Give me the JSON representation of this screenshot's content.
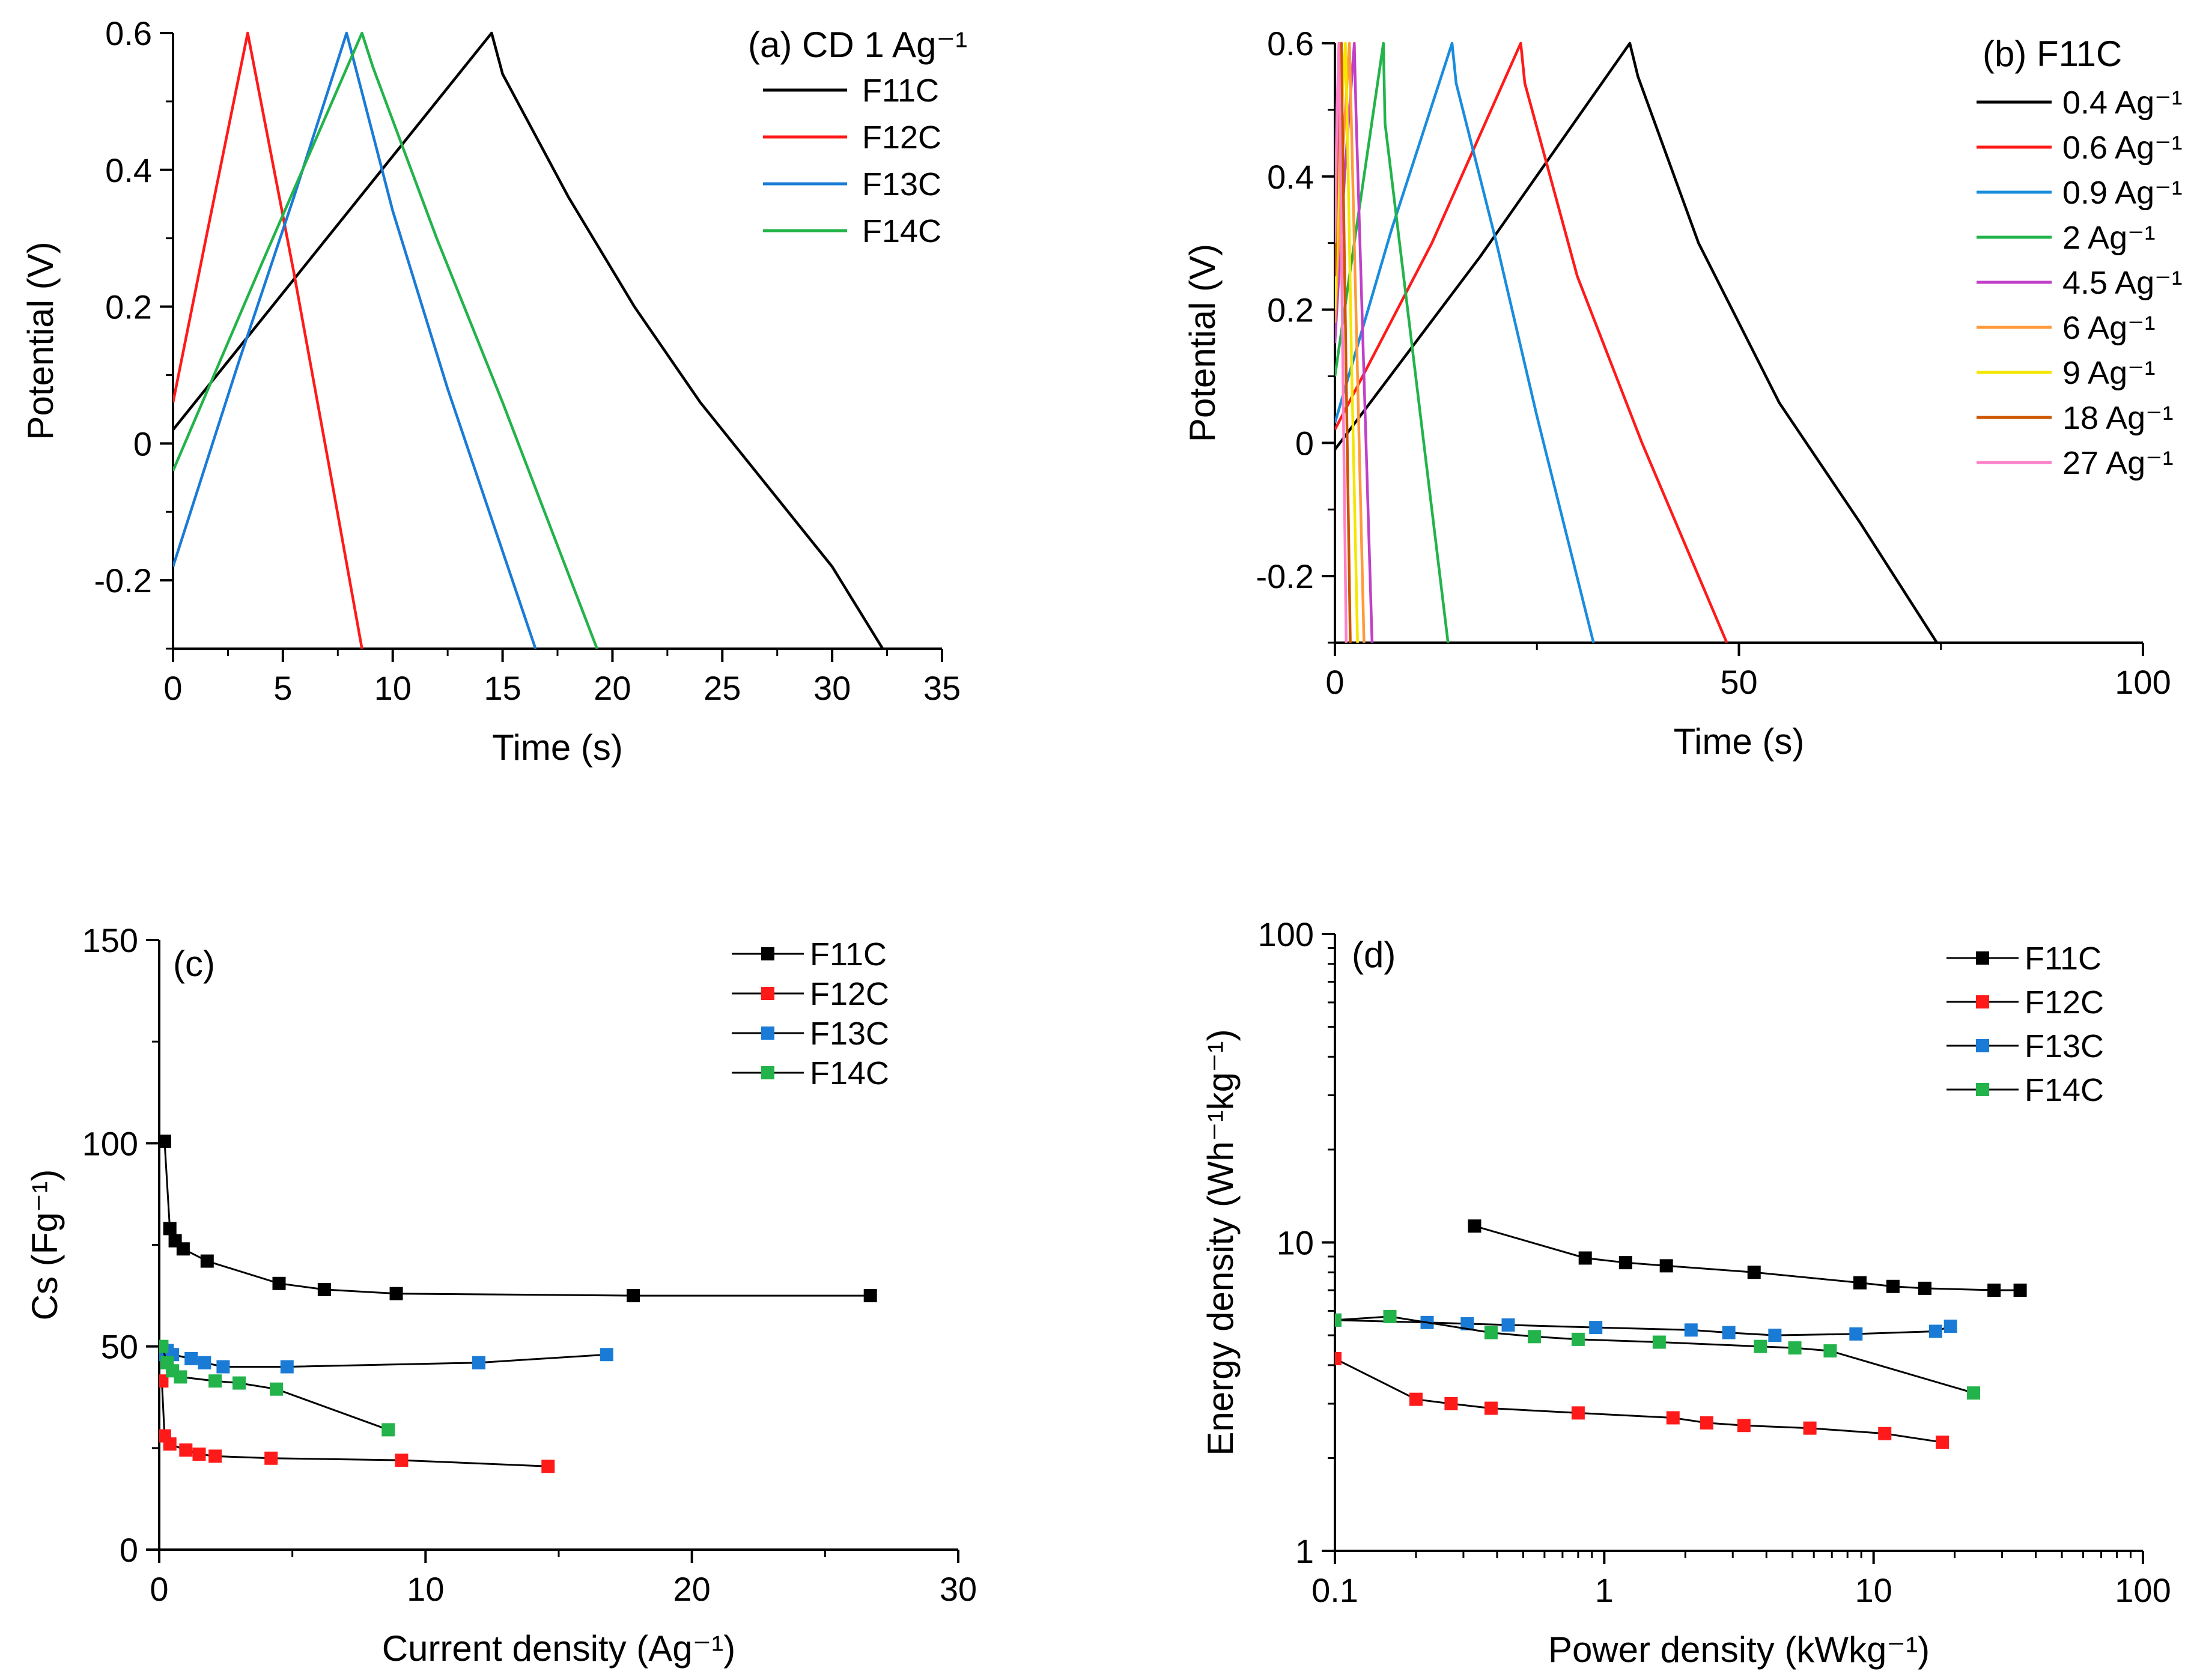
{
  "colors": {
    "F11C": "#000000",
    "F12C": "#ff1a1a",
    "F13C": "#1a7bd6",
    "F14C": "#22b34a",
    "r0_4": "#000000",
    "r0_6": "#ff1a1a",
    "r0_9": "#1a8cdc",
    "r2": "#22b34a",
    "r4_5": "#c040c8",
    "r6": "#ff9a3c",
    "r9": "#f5e600",
    "r18": "#cc5500",
    "r27": "#ff80c8"
  },
  "panels": [
    {
      "id": "a",
      "title": "(a) CD 1 Ag⁻¹",
      "xlabel": "Time (s)",
      "ylabel": "Potential (V)",
      "xticks": [
        "0",
        "5",
        "10",
        "15",
        "20",
        "25",
        "30",
        "35"
      ],
      "yticks": [
        "-0.2",
        "0",
        "0.2",
        "0.4",
        "0.6"
      ],
      "legend": [
        "F11C",
        "F12C",
        "F13C",
        "F14C"
      ]
    },
    {
      "id": "b",
      "title": "(b) F11C",
      "xlabel": "Time (s)",
      "ylabel": "Potential (V)",
      "xticks": [
        "0",
        "50",
        "100"
      ],
      "yticks": [
        "-0.2",
        "0",
        "0.2",
        "0.4",
        "0.6"
      ],
      "legend": [
        "0.4 Ag⁻¹",
        "0.6 Ag⁻¹",
        "0.9 Ag⁻¹",
        "2 Ag⁻¹",
        "4.5 Ag⁻¹",
        "6 Ag⁻¹",
        "9 Ag⁻¹",
        "18 Ag⁻¹",
        "27 Ag⁻¹"
      ]
    },
    {
      "id": "c",
      "title": "(c)",
      "xlabel": "Current density (Ag⁻¹)",
      "ylabel": "Cs (Fg⁻¹)",
      "xticks": [
        "0",
        "10",
        "20",
        "30"
      ],
      "yticks": [
        "0",
        "50",
        "100",
        "150"
      ],
      "legend": [
        "F11C",
        "F12C",
        "F13C",
        "F14C"
      ]
    },
    {
      "id": "d",
      "title": "(d)",
      "xlabel": "Power density (kWkg⁻¹)",
      "ylabel": "Energy density (Wh⁻¹kg⁻¹)",
      "xticks": [
        "0.1",
        "1",
        "10",
        "100"
      ],
      "yticks": [
        "1",
        "10",
        "100"
      ],
      "legend": [
        "F11C",
        "F12C",
        "F13C",
        "F14C"
      ]
    }
  ],
  "chart_data": [
    {
      "type": "line",
      "title": "(a) CD 1 Ag⁻¹",
      "xlabel": "Time (s)",
      "ylabel": "Potential (V)",
      "xlim": [
        0,
        35
      ],
      "ylim": [
        -0.3,
        0.6
      ],
      "series": [
        {
          "name": "F11C",
          "x": [
            0,
            7,
            14.5,
            15,
            18,
            21,
            24,
            27,
            30,
            32.3
          ],
          "y": [
            0.02,
            0.3,
            0.6,
            0.54,
            0.36,
            0.2,
            0.06,
            -0.06,
            -0.18,
            -0.3
          ]
        },
        {
          "name": "F12C",
          "x": [
            0,
            1.5,
            3.4,
            5.5,
            7.2,
            8.6
          ],
          "y": [
            0.06,
            0.3,
            0.6,
            0.25,
            -0.05,
            -0.3
          ]
        },
        {
          "name": "F13C",
          "x": [
            0,
            3,
            5.5,
            7.9,
            10,
            12.5,
            16.5
          ],
          "y": [
            -0.18,
            0.12,
            0.36,
            0.6,
            0.34,
            0.08,
            -0.3
          ]
        },
        {
          "name": "F14C",
          "x": [
            0,
            4,
            8.6,
            9.1,
            12,
            15,
            19.3
          ],
          "y": [
            -0.04,
            0.26,
            0.6,
            0.55,
            0.3,
            0.06,
            -0.3
          ]
        }
      ]
    },
    {
      "type": "line",
      "title": "(b) F11C",
      "xlabel": "Time (s)",
      "ylabel": "Potential (V)",
      "xlim": [
        0,
        100
      ],
      "ylim": [
        -0.3,
        0.6
      ],
      "series": [
        {
          "name": "0.4 Ag⁻¹",
          "x": [
            0,
            18,
            36.5,
            37.5,
            45,
            55,
            65,
            74.5
          ],
          "y": [
            -0.01,
            0.28,
            0.6,
            0.55,
            0.3,
            0.06,
            -0.12,
            -0.3
          ]
        },
        {
          "name": "0.6 Ag⁻¹",
          "x": [
            0,
            12,
            23,
            23.5,
            30,
            38,
            48.5
          ],
          "y": [
            0.02,
            0.3,
            0.6,
            0.54,
            0.25,
            0.0,
            -0.3
          ]
        },
        {
          "name": "0.9 Ag⁻¹",
          "x": [
            0,
            7,
            14.5,
            15,
            20,
            25,
            32
          ],
          "y": [
            0.03,
            0.32,
            0.6,
            0.54,
            0.3,
            0.04,
            -0.3
          ]
        },
        {
          "name": "2 Ag⁻¹",
          "x": [
            0,
            3,
            6,
            6.2,
            9,
            11,
            14
          ],
          "y": [
            0.1,
            0.35,
            0.6,
            0.48,
            0.2,
            0.0,
            -0.3
          ]
        },
        {
          "name": "4.5 Ag⁻¹",
          "x": [
            0,
            1.2,
            2.4,
            2.6,
            3.6,
            4.6
          ],
          "y": [
            0.15,
            0.4,
            0.6,
            0.5,
            0.1,
            -0.3
          ]
        },
        {
          "name": "6 Ag⁻¹",
          "x": [
            0,
            0.9,
            1.8,
            2.0,
            2.8,
            3.6
          ],
          "y": [
            0.18,
            0.42,
            0.6,
            0.5,
            0.1,
            -0.3
          ]
        },
        {
          "name": "9 Ag⁻¹",
          "x": [
            0,
            0.6,
            1.3,
            1.5,
            2.1,
            2.8
          ],
          "y": [
            0.2,
            0.45,
            0.6,
            0.5,
            0.1,
            -0.3
          ]
        },
        {
          "name": "18 Ag⁻¹",
          "x": [
            0,
            0.4,
            0.8,
            0.9,
            1.4,
            1.9
          ],
          "y": [
            0.25,
            0.5,
            0.6,
            0.5,
            0.1,
            -0.3
          ]
        },
        {
          "name": "27 Ag⁻¹",
          "x": [
            0,
            0.25,
            0.5,
            0.6,
            1.0,
            1.4
          ],
          "y": [
            0.3,
            0.5,
            0.6,
            0.5,
            0.1,
            -0.3
          ]
        }
      ]
    },
    {
      "type": "scatter",
      "title": "(c)",
      "xlabel": "Current density (Ag⁻¹)",
      "ylabel": "Cs (Fg⁻¹)",
      "xlim": [
        0,
        30
      ],
      "ylim": [
        0,
        150
      ],
      "series": [
        {
          "name": "F11C",
          "x": [
            0.2,
            0.4,
            0.6,
            0.9,
            1.8,
            4.5,
            6.2,
            8.9,
            17.8,
            26.7
          ],
          "y": [
            100.5,
            79,
            76,
            74,
            71,
            65.5,
            64,
            63,
            62.5,
            62.5
          ]
        },
        {
          "name": "F12C",
          "x": [
            0.1,
            0.2,
            0.4,
            1.0,
            1.5,
            2.1,
            4.2,
            9.1,
            14.6
          ],
          "y": [
            41.5,
            28,
            26,
            24.5,
            23.5,
            23,
            22.5,
            22,
            20.5
          ]
        },
        {
          "name": "F13C",
          "x": [
            0.1,
            0.3,
            0.5,
            1.2,
            1.7,
            2.4,
            4.8,
            12.0,
            16.8
          ],
          "y": [
            48,
            49,
            48,
            47,
            46,
            45,
            45,
            46,
            48
          ]
        },
        {
          "name": "F14C",
          "x": [
            0.1,
            0.3,
            0.5,
            0.8,
            2.1,
            3.0,
            4.4,
            8.6
          ],
          "y": [
            50,
            46,
            44,
            42.5,
            41.5,
            41,
            39.5,
            29.5
          ]
        }
      ]
    },
    {
      "type": "scatter",
      "title": "(d)",
      "xlabel": "Power density (kWkg⁻¹)",
      "ylabel": "Energy density (Wh⁻¹kg⁻¹)",
      "xscale": "log",
      "yscale": "log",
      "xlim": [
        0.1,
        100
      ],
      "ylim": [
        1,
        100
      ],
      "series": [
        {
          "name": "F11C",
          "x": [
            0.33,
            0.85,
            1.2,
            1.7,
            3.6,
            8.9,
            11.8,
            15.5,
            28,
            35
          ],
          "y": [
            11.3,
            8.9,
            8.6,
            8.4,
            8.0,
            7.4,
            7.2,
            7.1,
            7.0,
            7.0
          ]
        },
        {
          "name": "F12C",
          "x": [
            0.1,
            0.2,
            0.27,
            0.38,
            0.8,
            1.8,
            2.4,
            3.3,
            5.8,
            11,
            18
          ],
          "y": [
            4.2,
            3.1,
            3.0,
            2.9,
            2.8,
            2.7,
            2.6,
            2.55,
            2.5,
            2.4,
            2.25
          ]
        },
        {
          "name": "F13C",
          "x": [
            0.1,
            0.22,
            0.31,
            0.44,
            0.93,
            2.1,
            2.9,
            4.3,
            8.6,
            17,
            19.3
          ],
          "y": [
            5.6,
            5.5,
            5.45,
            5.4,
            5.3,
            5.2,
            5.1,
            5.0,
            5.05,
            5.15,
            5.35
          ]
        },
        {
          "name": "F14C",
          "x": [
            0.1,
            0.16,
            0.38,
            0.55,
            0.8,
            1.6,
            3.8,
            5.1,
            6.9,
            23.5
          ],
          "y": [
            5.6,
            5.75,
            5.1,
            4.95,
            4.85,
            4.75,
            4.6,
            4.55,
            4.45,
            3.25
          ]
        }
      ]
    }
  ]
}
